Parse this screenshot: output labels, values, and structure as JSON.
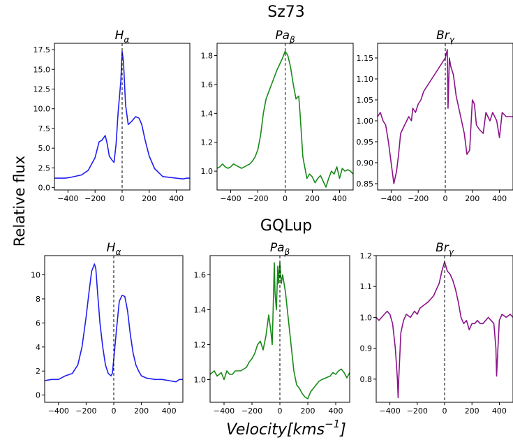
{
  "figure": {
    "ylabel": "Relative flux",
    "xlabel": "Velocity[kms",
    "xlabel_sup": "−1",
    "xlabel_end": "]"
  },
  "groups": [
    {
      "title": "Sz73"
    },
    {
      "title": "GQLup"
    }
  ],
  "chart_data": [
    {
      "type": "line",
      "group": "Sz73",
      "title_base": "H",
      "title_sub": "α",
      "xlim": [
        -500,
        500
      ],
      "ylim": [
        -0.3,
        18.3
      ],
      "color": "#1f1ff0",
      "xticks": [
        -400,
        -200,
        0,
        200,
        400
      ],
      "xtick_labels": [
        "−400",
        "−200",
        "0",
        "200",
        "400"
      ],
      "yticks": [
        0,
        2.5,
        5,
        7.5,
        10,
        12.5,
        15,
        17.5
      ],
      "ytick_labels": [
        "0.0",
        "2.5",
        "5.0",
        "7.5",
        "10.0",
        "12.5",
        "15.0",
        "17.5"
      ],
      "vline_x": 0,
      "x": [
        -500,
        -420,
        -380,
        -300,
        -250,
        -200,
        -170,
        -150,
        -125,
        -110,
        -95,
        -75,
        -60,
        -45,
        -30,
        -10,
        0,
        10,
        25,
        45,
        70,
        100,
        125,
        145,
        170,
        200,
        240,
        300,
        350,
        400,
        450,
        475,
        500
      ],
      "y": [
        1.2,
        1.2,
        1.3,
        1.6,
        2.2,
        3.8,
        5.8,
        6.0,
        6.6,
        5.5,
        4.0,
        3.5,
        3.2,
        5.5,
        9.5,
        13.5,
        17.3,
        16.0,
        10.5,
        8.0,
        8.4,
        9.0,
        8.8,
        8.0,
        6.0,
        4.0,
        2.4,
        1.4,
        1.3,
        1.2,
        1.1,
        1.2,
        1.2
      ]
    },
    {
      "type": "line",
      "group": "Sz73",
      "title_base": "Pa",
      "title_sub": "β",
      "xlim": [
        -500,
        500
      ],
      "ylim": [
        0.87,
        1.885
      ],
      "color": "#1a8a1a",
      "xticks": [
        -400,
        -200,
        0,
        200,
        400
      ],
      "xtick_labels": [
        "−400",
        "−200",
        "0",
        "200",
        "400"
      ],
      "yticks": [
        1.0,
        1.2,
        1.4,
        1.6,
        1.8
      ],
      "ytick_labels": [
        "1.0",
        "1.2",
        "1.4",
        "1.6",
        "1.8"
      ],
      "vline_x": 0,
      "x": [
        -500,
        -480,
        -460,
        -440,
        -420,
        -400,
        -380,
        -360,
        -340,
        -320,
        -300,
        -280,
        -260,
        -240,
        -220,
        -200,
        -180,
        -160,
        -140,
        -120,
        -100,
        -80,
        -60,
        -40,
        -20,
        0,
        20,
        40,
        60,
        80,
        100,
        110,
        120,
        130,
        140,
        160,
        180,
        200,
        220,
        240,
        260,
        280,
        300,
        320,
        340,
        360,
        380,
        400,
        420,
        440,
        460,
        480,
        500
      ],
      "y": [
        1.02,
        1.03,
        1.05,
        1.03,
        1.02,
        1.03,
        1.05,
        1.04,
        1.03,
        1.02,
        1.03,
        1.04,
        1.05,
        1.07,
        1.1,
        1.15,
        1.25,
        1.4,
        1.5,
        1.55,
        1.6,
        1.65,
        1.7,
        1.74,
        1.78,
        1.83,
        1.8,
        1.72,
        1.6,
        1.5,
        1.52,
        1.4,
        1.25,
        1.1,
        1.05,
        0.95,
        0.98,
        0.96,
        0.92,
        0.95,
        0.97,
        0.93,
        0.89,
        0.95,
        1.0,
        0.98,
        1.03,
        0.95,
        1.02,
        1.0,
        1.01,
        1.0,
        0.98
      ]
    },
    {
      "type": "line",
      "group": "Sz73",
      "title_base": "Br",
      "title_sub": "γ",
      "xlim": [
        -500,
        500
      ],
      "ylim": [
        0.835,
        1.185
      ],
      "color": "#8b148b",
      "xticks": [
        -400,
        -200,
        0,
        200,
        400
      ],
      "xtick_labels": [
        "−400",
        "−200",
        "0",
        "200",
        "400"
      ],
      "yticks": [
        0.85,
        0.9,
        0.95,
        1.0,
        1.05,
        1.1,
        1.15
      ],
      "ytick_labels": [
        "0.85",
        "0.90",
        "0.95",
        "1.00",
        "1.05",
        "1.10",
        "1.15"
      ],
      "vline_x": 0,
      "x": [
        -500,
        -480,
        -460,
        -440,
        -420,
        -400,
        -380,
        -360,
        -345,
        -330,
        -300,
        -270,
        -250,
        -240,
        -220,
        -200,
        -180,
        -160,
        -140,
        -120,
        -100,
        -80,
        -60,
        -40,
        -20,
        0,
        15,
        20,
        30,
        40,
        60,
        80,
        100,
        120,
        140,
        160,
        180,
        200,
        215,
        230,
        250,
        280,
        300,
        330,
        350,
        380,
        400,
        420,
        450,
        480,
        500
      ],
      "y": [
        1.01,
        1.02,
        1.0,
        0.99,
        0.95,
        0.9,
        0.85,
        0.88,
        0.92,
        0.97,
        0.99,
        1.01,
        1.0,
        1.03,
        1.02,
        1.04,
        1.05,
        1.07,
        1.08,
        1.09,
        1.1,
        1.11,
        1.12,
        1.13,
        1.14,
        1.15,
        1.17,
        1.03,
        1.15,
        1.13,
        1.11,
        1.06,
        1.03,
        1.0,
        0.97,
        0.92,
        0.93,
        1.05,
        1.04,
        0.99,
        0.98,
        0.97,
        1.02,
        1.0,
        1.02,
        1.0,
        0.96,
        1.02,
        1.01,
        1.01,
        1.01
      ]
    },
    {
      "type": "line",
      "group": "GQLup",
      "title_base": "H",
      "title_sub": "α",
      "xlim": [
        -500,
        500
      ],
      "ylim": [
        -0.6,
        11.6
      ],
      "color": "#1f1ff0",
      "xticks": [
        -400,
        -200,
        0,
        200,
        400
      ],
      "xtick_labels": [
        "−400",
        "−200",
        "0",
        "200",
        "400"
      ],
      "yticks": [
        0,
        2,
        4,
        6,
        8,
        10
      ],
      "ytick_labels": [
        "0",
        "2",
        "4",
        "6",
        "8",
        "10"
      ],
      "vline_x": 0,
      "x": [
        -500,
        -450,
        -400,
        -350,
        -300,
        -260,
        -230,
        -200,
        -180,
        -160,
        -140,
        -130,
        -120,
        -100,
        -80,
        -60,
        -40,
        -20,
        -10,
        0,
        20,
        40,
        60,
        80,
        100,
        120,
        140,
        160,
        180,
        200,
        240,
        300,
        350,
        400,
        450,
        475,
        500
      ],
      "y": [
        1.2,
        1.3,
        1.3,
        1.6,
        1.8,
        2.5,
        4.0,
        6.5,
        8.5,
        10.3,
        10.9,
        10.5,
        9.0,
        6.0,
        4.0,
        2.5,
        1.8,
        1.6,
        1.8,
        3.0,
        5.5,
        7.8,
        8.3,
        8.2,
        7.0,
        5.0,
        3.5,
        2.5,
        2.0,
        1.6,
        1.4,
        1.3,
        1.3,
        1.2,
        1.1,
        1.3,
        1.3
      ]
    },
    {
      "type": "line",
      "group": "GQLup",
      "title_base": "Pa",
      "title_sub": "β",
      "xlim": [
        -500,
        500
      ],
      "ylim": [
        0.87,
        1.71
      ],
      "color": "#1a8a1a",
      "xticks": [
        -400,
        -200,
        0,
        200,
        400
      ],
      "xtick_labels": [
        "−400",
        "−200",
        "0",
        "200",
        "400"
      ],
      "yticks": [
        1.0,
        1.2,
        1.4,
        1.6
      ],
      "ytick_labels": [
        "1.0",
        "1.2",
        "1.4",
        "1.6"
      ],
      "vline_x": 0,
      "x": [
        -500,
        -470,
        -450,
        -420,
        -400,
        -380,
        -360,
        -340,
        -320,
        -300,
        -280,
        -260,
        -240,
        -220,
        -200,
        -180,
        -160,
        -140,
        -120,
        -100,
        -80,
        -65,
        -55,
        -45,
        -40,
        -35,
        -25,
        -15,
        -10,
        0,
        10,
        20,
        40,
        60,
        80,
        100,
        120,
        140,
        160,
        180,
        200,
        220,
        240,
        260,
        280,
        300,
        330,
        360,
        380,
        400,
        420,
        440,
        460,
        480,
        500
      ],
      "y": [
        1.03,
        1.05,
        1.02,
        1.04,
        1.0,
        1.05,
        1.03,
        1.03,
        1.05,
        1.05,
        1.05,
        1.06,
        1.07,
        1.1,
        1.12,
        1.15,
        1.2,
        1.22,
        1.17,
        1.25,
        1.37,
        1.28,
        1.2,
        1.5,
        1.67,
        1.5,
        1.4,
        1.65,
        1.55,
        1.67,
        1.55,
        1.6,
        1.5,
        1.35,
        1.2,
        1.05,
        0.97,
        0.95,
        0.92,
        0.9,
        0.89,
        0.93,
        0.95,
        0.97,
        0.99,
        1.0,
        1.01,
        1.02,
        1.04,
        1.03,
        1.05,
        1.06,
        1.04,
        1.01,
        1.04
      ]
    },
    {
      "type": "line",
      "group": "GQLup",
      "title_base": "Br",
      "title_sub": "γ",
      "xlim": [
        -500,
        500
      ],
      "ylim": [
        0.725,
        1.2
      ],
      "color": "#8b148b",
      "xticks": [
        -400,
        -200,
        0,
        200,
        400
      ],
      "xtick_labels": [
        "−400",
        "−200",
        "0",
        "200",
        "400"
      ],
      "yticks": [
        0.8,
        0.9,
        1.0,
        1.1,
        1.2
      ],
      "ytick_labels": [
        "0.8",
        "0.9",
        "1.0",
        "1.1",
        "1.2"
      ],
      "vline_x": 0,
      "x": [
        -500,
        -480,
        -460,
        -420,
        -400,
        -380,
        -360,
        -345,
        -340,
        -335,
        -320,
        -300,
        -280,
        -250,
        -220,
        -200,
        -180,
        -150,
        -120,
        -100,
        -80,
        -60,
        -40,
        -20,
        0,
        20,
        40,
        60,
        80,
        100,
        120,
        140,
        160,
        180,
        200,
        220,
        240,
        260,
        280,
        300,
        320,
        340,
        360,
        375,
        380,
        390,
        400,
        420,
        450,
        480,
        500
      ],
      "y": [
        1.0,
        0.99,
        1.0,
        1.02,
        1.01,
        0.98,
        0.9,
        0.8,
        0.74,
        0.8,
        0.95,
        0.99,
        1.01,
        1.0,
        1.02,
        1.01,
        1.03,
        1.04,
        1.05,
        1.06,
        1.07,
        1.09,
        1.11,
        1.15,
        1.18,
        1.15,
        1.14,
        1.12,
        1.09,
        1.05,
        1.0,
        0.98,
        0.99,
        0.96,
        0.98,
        0.98,
        0.99,
        0.98,
        0.98,
        0.99,
        1.0,
        0.99,
        0.98,
        0.9,
        0.81,
        0.9,
        0.99,
        1.01,
        1.0,
        1.01,
        1.0
      ]
    }
  ]
}
